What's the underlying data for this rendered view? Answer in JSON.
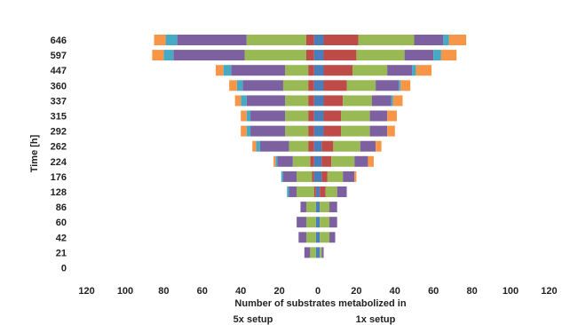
{
  "chart_data": {
    "type": "bar",
    "orientation": "horizontal-diverging",
    "ylabel": "Time [h]",
    "xlabel": "Number of substrates metabolized in",
    "left_label": "5x setup",
    "right_label": "1x setup",
    "x_ticks": [
      "120",
      "100",
      "80",
      "60",
      "40",
      "20",
      "0",
      "20",
      "40",
      "60",
      "80",
      "100",
      "120"
    ],
    "xlim": [
      -120,
      120
    ],
    "categories": [
      "646",
      "597",
      "447",
      "360",
      "337",
      "315",
      "292",
      "262",
      "224",
      "176",
      "128",
      "86",
      "60",
      "42",
      "21",
      "0"
    ],
    "colors": [
      "#4A7EBB",
      "#BE4B48",
      "#98B954",
      "#7D60A0",
      "#46AAC5",
      "#F79646",
      "#A0522D",
      "#4B3F72"
    ],
    "left_series": [
      [
        2,
        2,
        2,
        2,
        2,
        2,
        2,
        2,
        2,
        2,
        1,
        1,
        1,
        1,
        1,
        0
      ],
      [
        4,
        4,
        3,
        3,
        3,
        3,
        3,
        3,
        2,
        1,
        1,
        0,
        0,
        0,
        0,
        0
      ],
      [
        31,
        32,
        12,
        13,
        12,
        12,
        12,
        10,
        9,
        8,
        9,
        5,
        5,
        5,
        3,
        0
      ],
      [
        36,
        37,
        28,
        21,
        20,
        18,
        18,
        15,
        8,
        7,
        4,
        3,
        5,
        4,
        3,
        0
      ],
      [
        6,
        5,
        4,
        3,
        3,
        2,
        2,
        2,
        1,
        1,
        1,
        0,
        0,
        0,
        0,
        0
      ],
      [
        6,
        6,
        4,
        4,
        3,
        3,
        3,
        2,
        1,
        0,
        0,
        0,
        0,
        0,
        0,
        0
      ],
      [
        0,
        0,
        0,
        0,
        0,
        0,
        0,
        0,
        0,
        0,
        0,
        0,
        0,
        0,
        0,
        0
      ],
      [
        0,
        0,
        0,
        0,
        0,
        0,
        0,
        0,
        0,
        0,
        0,
        0,
        0,
        0,
        0,
        0
      ]
    ],
    "right_series": [
      [
        3,
        3,
        3,
        3,
        3,
        3,
        3,
        2,
        2,
        2,
        1,
        1,
        1,
        1,
        1,
        0
      ],
      [
        18,
        17,
        15,
        12,
        10,
        9,
        9,
        6,
        5,
        3,
        3,
        0,
        0,
        0,
        0,
        0
      ],
      [
        29,
        25,
        18,
        15,
        15,
        15,
        15,
        14,
        12,
        8,
        6,
        5,
        5,
        5,
        1,
        0
      ],
      [
        15,
        15,
        13,
        12,
        10,
        9,
        9,
        8,
        7,
        6,
        5,
        4,
        4,
        3,
        1,
        0
      ],
      [
        3,
        4,
        2,
        1,
        1,
        0,
        0,
        0,
        0,
        0,
        0,
        0,
        0,
        0,
        0,
        0
      ],
      [
        9,
        8,
        8,
        5,
        5,
        5,
        4,
        3,
        3,
        1,
        0,
        0,
        0,
        0,
        0,
        0
      ]
    ]
  }
}
